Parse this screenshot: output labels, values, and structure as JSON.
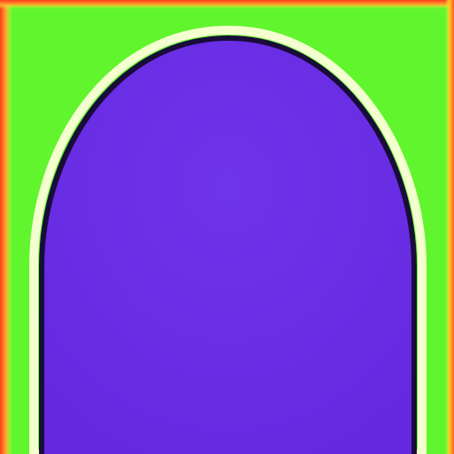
{
  "image": {
    "colors": {
      "background": "#61f52e",
      "arch_fill": "#6a2fe6",
      "arch_fill_light": "#7a3cf0",
      "outline_dark": "#1a0c3a",
      "halo_light": "#f4ffcf",
      "frame_red": "#ff3b1f",
      "frame_orange": "#ffa22a",
      "frame_yellow": "#ecff3a"
    },
    "shapes": [
      "green-background",
      "purple-arch",
      "red-edge-frame"
    ]
  }
}
